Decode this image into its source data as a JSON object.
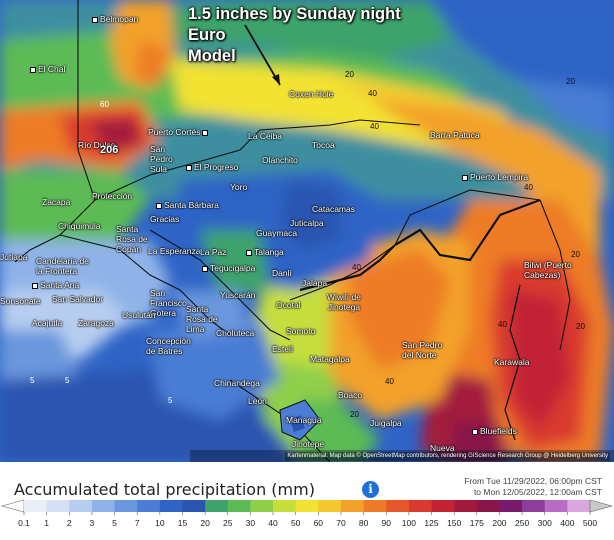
{
  "annotation": {
    "line1": "1.5 inches by Sunday night",
    "line2": "Euro",
    "line3": "Model"
  },
  "places": [
    {
      "name": "Belmopan"
    },
    {
      "name": "El Chal"
    },
    {
      "name": "Río Dulce"
    },
    {
      "name": "Puerto Cortés"
    },
    {
      "name": "San Pedro Sula"
    },
    {
      "name": "El Progreso"
    },
    {
      "name": "La Ceiba"
    },
    {
      "name": "Olanchito"
    },
    {
      "name": "Tocoa"
    },
    {
      "name": "Barra Patuca"
    },
    {
      "name": "Puerto Lempira"
    },
    {
      "name": "Coxen Hole"
    },
    {
      "name": "Yoro"
    },
    {
      "name": "Santa Bárbara"
    },
    {
      "name": "Protección"
    },
    {
      "name": "Zacapa"
    },
    {
      "name": "Chiquimula"
    },
    {
      "name": "Santa Rosa de Copán"
    },
    {
      "name": "Gracias"
    },
    {
      "name": "La Esperanza"
    },
    {
      "name": "La Paz"
    },
    {
      "name": "Talanga"
    },
    {
      "name": "Guaymaca"
    },
    {
      "name": "Juticalpa"
    },
    {
      "name": "Catacamas"
    },
    {
      "name": "Tegucigalpa"
    },
    {
      "name": "Danlí"
    },
    {
      "name": "Jalapa"
    },
    {
      "name": "Wiwilí de Jinotega"
    },
    {
      "name": "Bilwi (Puerto Cabezas)"
    },
    {
      "name": "Jutiapa"
    },
    {
      "name": "Candelaria de la Frontera"
    },
    {
      "name": "Santa Ana"
    },
    {
      "name": "San Salvador"
    },
    {
      "name": "Sonsonate"
    },
    {
      "name": "Acajutla"
    },
    {
      "name": "Zaragoza"
    },
    {
      "name": "San Francisco Gotera"
    },
    {
      "name": "Yuscarán"
    },
    {
      "name": "Ocotal"
    },
    {
      "name": "Usulután"
    },
    {
      "name": "Santa Rosa de Lima"
    },
    {
      "name": "Concepción de Batres"
    },
    {
      "name": "Choluteca"
    },
    {
      "name": "Somoto"
    },
    {
      "name": "Estelí"
    },
    {
      "name": "Matagalpa"
    },
    {
      "name": "San Pedro del Norte"
    },
    {
      "name": "Karawala"
    },
    {
      "name": "Chinandega"
    },
    {
      "name": "León"
    },
    {
      "name": "Boaco"
    },
    {
      "name": "Juigalpa"
    },
    {
      "name": "Managua"
    },
    {
      "name": "Jinotepe"
    },
    {
      "name": "Nueva"
    },
    {
      "name": "Bluefields"
    }
  ],
  "peak_label": "206",
  "contour_labels": [
    "20",
    "40",
    "60",
    "20",
    "40",
    "20",
    "40",
    "40",
    "20",
    "40",
    "40",
    "5",
    "5",
    "5",
    "20"
  ],
  "credit": "Kartenmaterial: Map data © OpenStreetMap contributors, rendering GIScience Research Group @ Heidelberg University",
  "legend": {
    "title": "Accumulated total precipitation (mm)",
    "date_from": "From Tue 11/29/2022, 06:00pm CST",
    "date_to": "to Mon 12/05/2022, 12:00am CST",
    "ticks": [
      "0.1",
      "1",
      "2",
      "3",
      "5",
      "7",
      "10",
      "15",
      "20",
      "25",
      "30",
      "40",
      "50",
      "60",
      "70",
      "80",
      "90",
      "100",
      "125",
      "150",
      "175",
      "200",
      "250",
      "300",
      "400",
      "500"
    ],
    "colors": [
      "#e9eef7",
      "#d4e0f5",
      "#b6cdef",
      "#8fb3e8",
      "#6b97de",
      "#4a7dd3",
      "#2f64c6",
      "#2a55b0",
      "#3ea36a",
      "#5cbb55",
      "#8fcf48",
      "#c6de3c",
      "#f2e233",
      "#f3c72d",
      "#f2a12a",
      "#ee7b27",
      "#e6582a",
      "#d93a2f",
      "#c22436",
      "#a31a3c",
      "#8a1548",
      "#7a1a6e",
      "#8f3d9c",
      "#b96cc4",
      "#d9a6dd",
      "#c9c9c9"
    ]
  }
}
